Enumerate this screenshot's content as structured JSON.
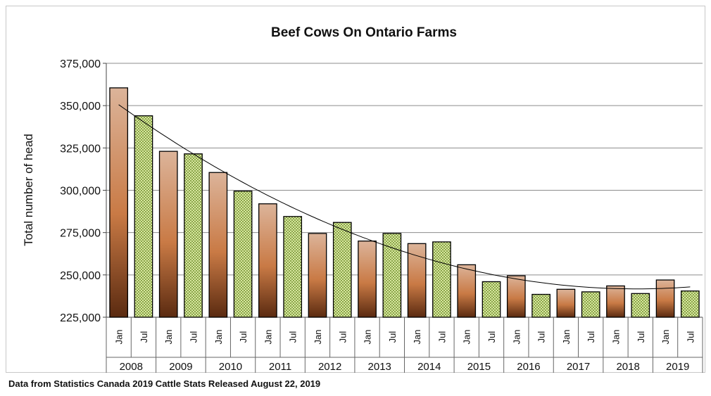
{
  "chart_data": {
    "type": "bar",
    "title": "Beef Cows On Ontario Farms",
    "ylabel": "Total number of head",
    "xlabel": "",
    "ylim": [
      225000,
      375000
    ],
    "yticks": [
      225000,
      250000,
      275000,
      300000,
      325000,
      350000,
      375000
    ],
    "ytick_labels": [
      "225,000",
      "250,000",
      "275,000",
      "300,000",
      "325,000",
      "350,000",
      "375,000"
    ],
    "grid": true,
    "legend": "none",
    "years": [
      "2008",
      "2009",
      "2010",
      "2011",
      "2012",
      "2013",
      "2014",
      "2015",
      "2016",
      "2017",
      "2018",
      "2019"
    ],
    "months": [
      "Jan",
      "Jul"
    ],
    "series": [
      {
        "values": [
          360500,
          344000,
          323000,
          321500,
          310500,
          299500,
          292000,
          284500,
          274500,
          281000,
          270000,
          274500,
          268500,
          269500,
          256000,
          246000,
          249500,
          238500,
          241500,
          240000,
          243500,
          239000,
          247000,
          240500
        ]
      }
    ],
    "colors": {
      "jan_top": "#dcb49a",
      "jan_mid": "#c97a45",
      "jan_bottom": "#5a2a10",
      "jul_fill": "#8aa64a",
      "jul_dot": "#d8e6a0",
      "trendline": "#000000"
    },
    "trendline": {
      "type": "polynomial",
      "shown": true
    }
  },
  "source_note": "Data from Statistics Canada 2019 Cattle Stats  Released August 22, 2019"
}
